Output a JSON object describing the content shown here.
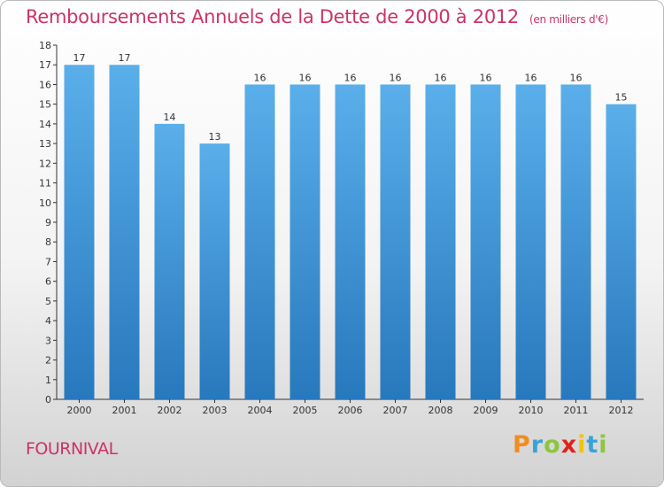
{
  "title": "Remboursements Annuels de la Dette de 2000 à 2012",
  "title_unit": "(en milliers d'€)",
  "town": "FOURNIVAL",
  "brand": {
    "letters": [
      {
        "ch": "P",
        "color": "#f28c1e"
      },
      {
        "ch": "r",
        "color": "#3aa3d6"
      },
      {
        "ch": "o",
        "color": "#8cc63f"
      },
      {
        "ch": "x",
        "color": "#e2231a"
      },
      {
        "ch": "i",
        "color": "#f5c400"
      },
      {
        "ch": "t",
        "color": "#3aa3d6"
      },
      {
        "ch": "i",
        "color": "#8cc63f"
      }
    ]
  },
  "colors": {
    "title": "#cc3366",
    "bar_top": "#5aafea",
    "bar_bottom": "#2878bd"
  },
  "chart_data": {
    "type": "bar",
    "categories": [
      "2000",
      "2001",
      "2002",
      "2003",
      "2004",
      "2005",
      "2006",
      "2007",
      "2008",
      "2009",
      "2010",
      "2011",
      "2012"
    ],
    "values": [
      17,
      17,
      14,
      13,
      16,
      16,
      16,
      16,
      16,
      16,
      16,
      16,
      15
    ],
    "data_labels": [
      "17",
      "17",
      "14",
      "13",
      "16",
      "16",
      "16",
      "16",
      "16",
      "16",
      "16",
      "16",
      "15"
    ],
    "y_ticks": [
      "0",
      "1",
      "2",
      "3",
      "4",
      "5",
      "6",
      "7",
      "8",
      "9",
      "10",
      "11",
      "12",
      "13",
      "14",
      "15",
      "16",
      "17",
      "18"
    ],
    "ylim": [
      0,
      18
    ],
    "grid": false,
    "legend": false
  }
}
